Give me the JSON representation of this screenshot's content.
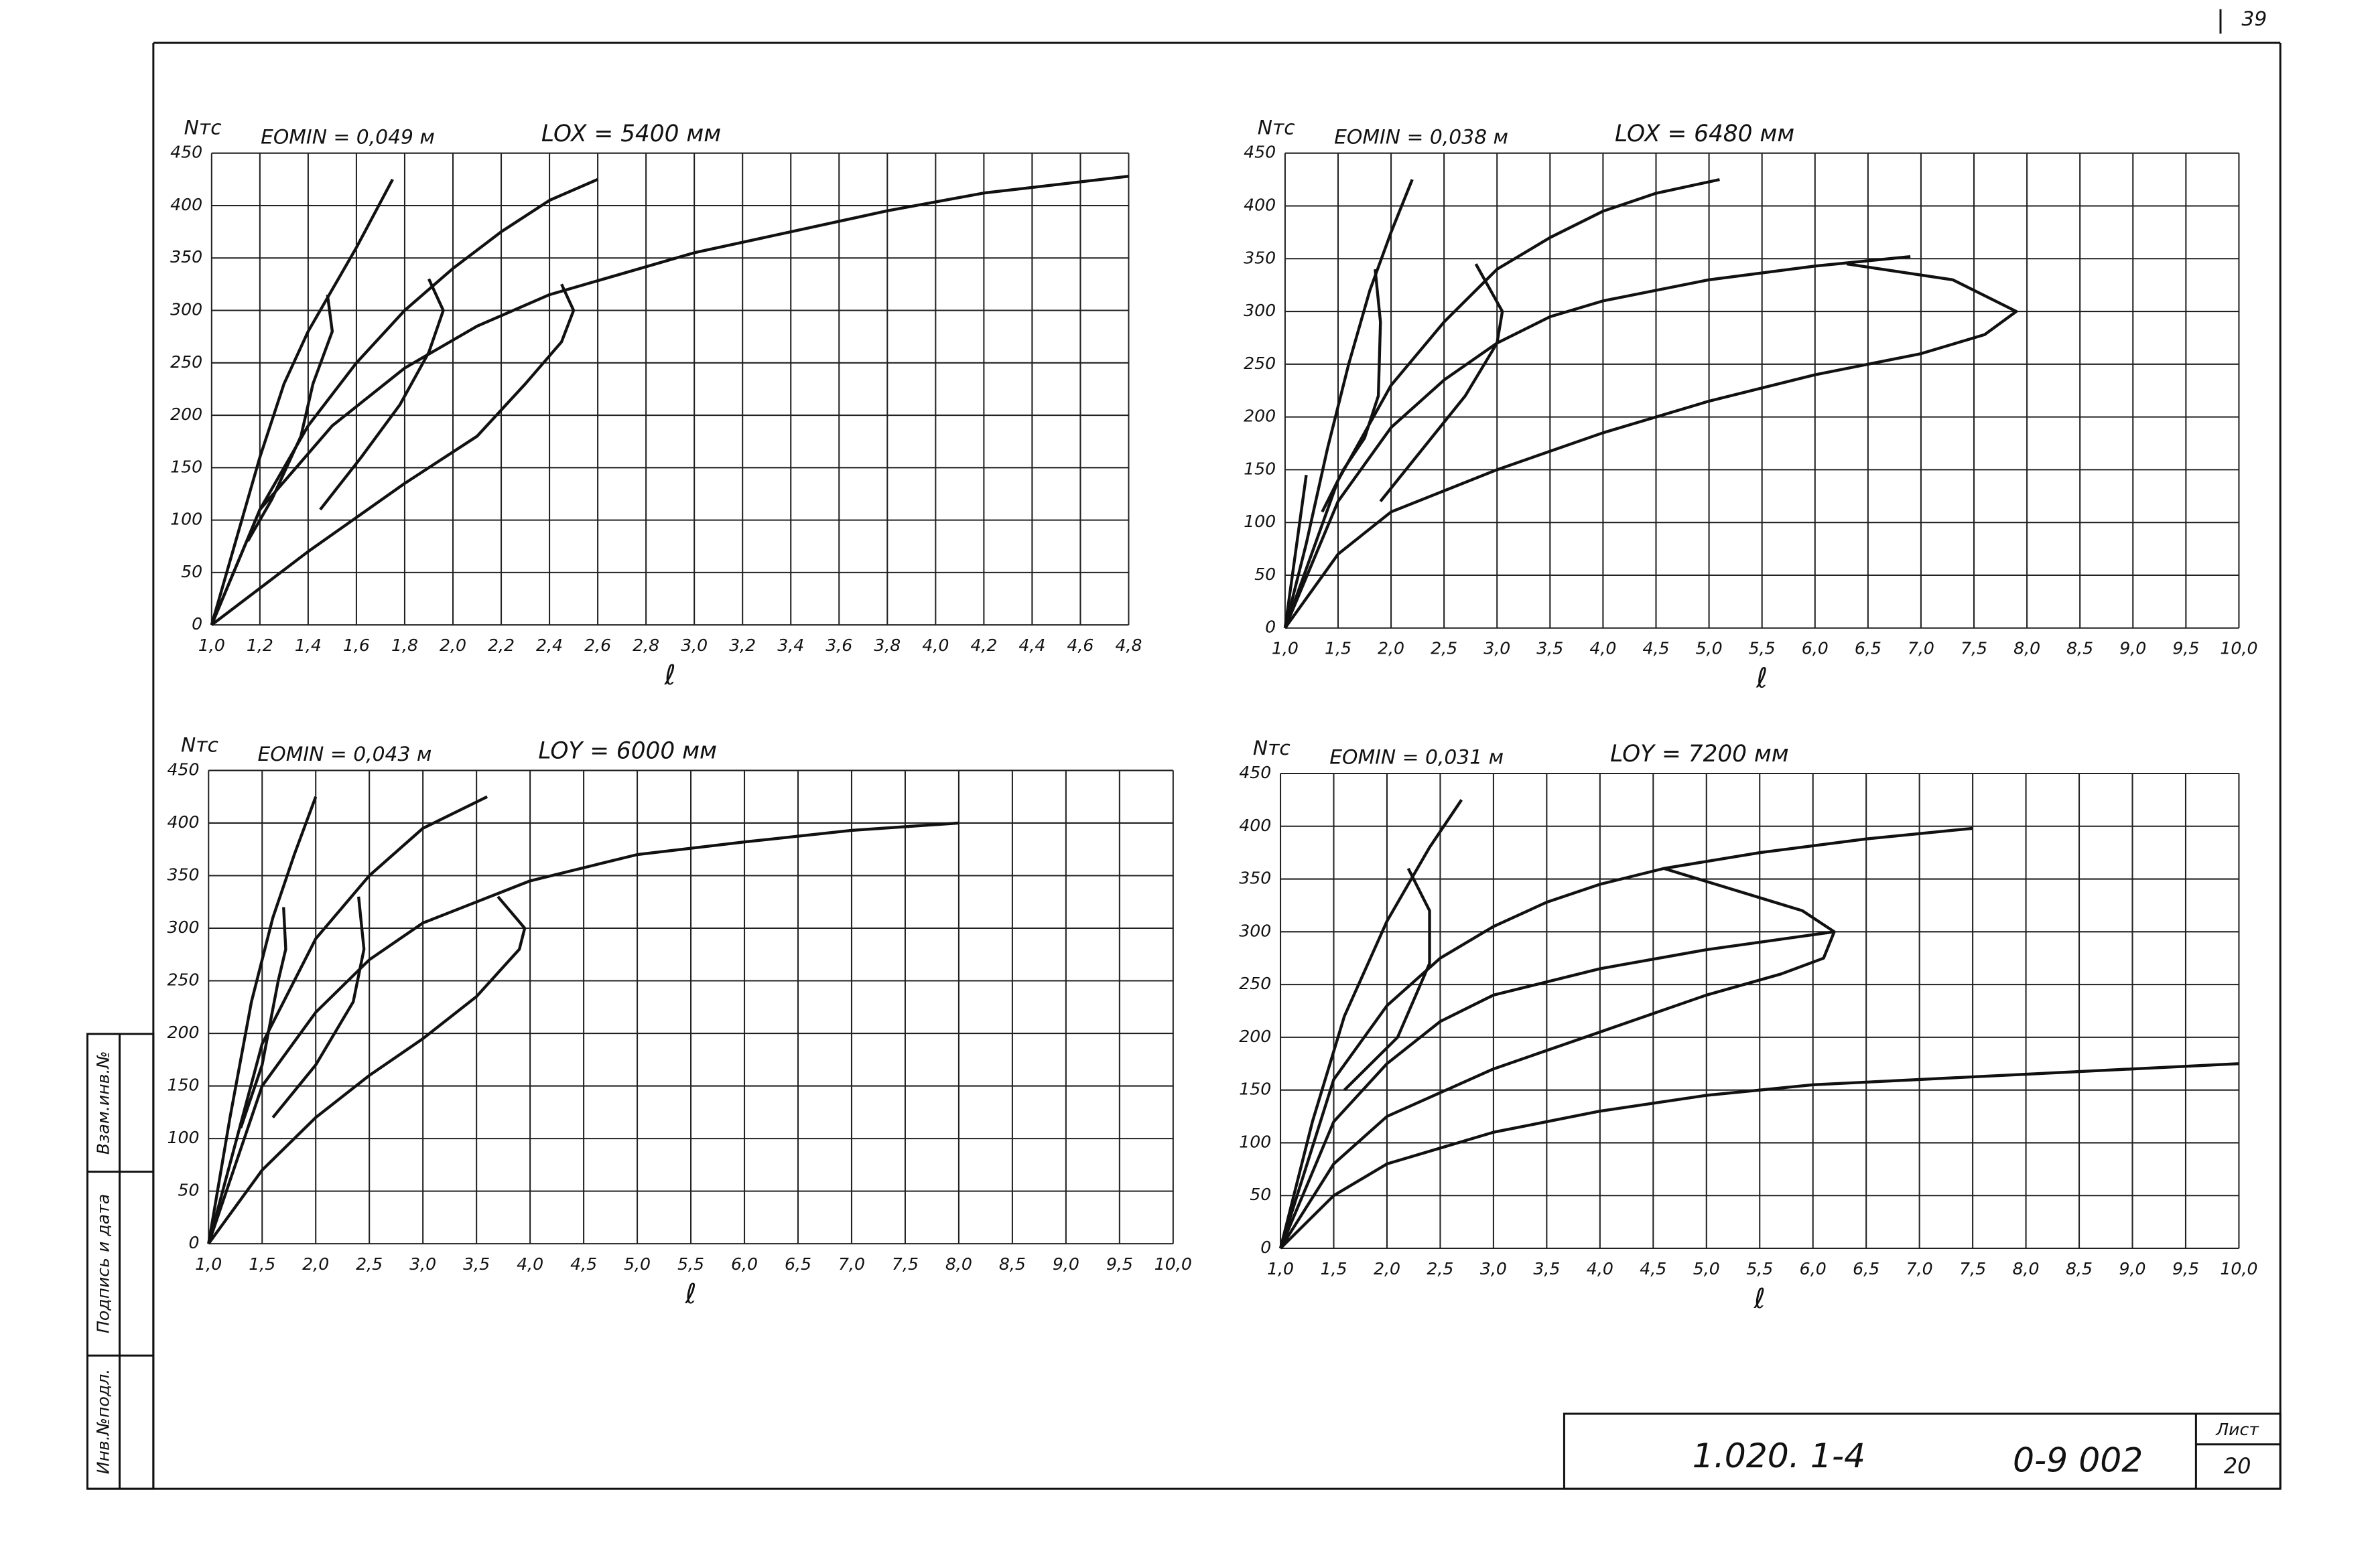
{
  "stamp": {
    "sheet_number": "39",
    "code": "1.020. 1-4",
    "drawing": "0-9 002",
    "sheet_label": "Лист",
    "sheet": "20",
    "replaced": "Взам.инв.№",
    "signature": "Подпись и дата",
    "original": "Инв.№подл."
  },
  "chart_data": [
    {
      "type": "line",
      "annotation": "EOMIN = 0,049 м",
      "title": "LOX = 5400 мм",
      "y_label": "Nтс",
      "x_label": "ℓ",
      "grid": true,
      "xlim": [
        1.0,
        4.8
      ],
      "ylim": [
        0,
        450
      ],
      "xticks": [
        {
          "value": 1.0,
          "label": "1,0"
        },
        {
          "value": 1.2,
          "label": "1,2"
        },
        {
          "value": 1.4,
          "label": "1,4"
        },
        {
          "value": 1.6,
          "label": "1,6"
        },
        {
          "value": 1.8,
          "label": "1,8"
        },
        {
          "value": 2.0,
          "label": "2,0"
        },
        {
          "value": 2.2,
          "label": "2,2"
        },
        {
          "value": 2.4,
          "label": "2,4"
        },
        {
          "value": 2.6,
          "label": "2,6"
        },
        {
          "value": 2.8,
          "label": "2,8"
        },
        {
          "value": 3.0,
          "label": "3,0"
        },
        {
          "value": 3.2,
          "label": "3,2"
        },
        {
          "value": 3.4,
          "label": "3,4"
        },
        {
          "value": 3.6,
          "label": "3,6"
        },
        {
          "value": 3.8,
          "label": "3,8"
        },
        {
          "value": 4.0,
          "label": "4,0"
        },
        {
          "value": 4.2,
          "label": "4,2"
        },
        {
          "value": 4.4,
          "label": "4,4"
        },
        {
          "value": 4.6,
          "label": "4,6"
        },
        {
          "value": 4.8,
          "label": "4,8"
        }
      ],
      "yticks": [
        0,
        50,
        100,
        150,
        200,
        250,
        300,
        350,
        400,
        450
      ],
      "series": [
        {
          "color": "#111",
          "x": [
            1.0,
            1.1,
            1.2,
            1.3,
            1.4,
            1.5,
            1.6,
            1.75
          ],
          "values": [
            0,
            80,
            160,
            230,
            280,
            320,
            360,
            425
          ]
        },
        {
          "color": "#111",
          "x": [
            1.0,
            1.2,
            1.4,
            1.6,
            1.8,
            2.0,
            2.2,
            2.4,
            2.6
          ],
          "values": [
            0,
            110,
            190,
            250,
            300,
            340,
            375,
            405,
            425
          ]
        },
        {
          "color": "#111",
          "x": [
            1.0,
            1.2,
            1.5,
            1.8,
            2.1,
            2.4,
            2.7,
            3.0,
            3.4,
            3.8,
            4.2,
            4.8
          ],
          "values": [
            0,
            110,
            190,
            245,
            285,
            315,
            335,
            355,
            375,
            395,
            412,
            428
          ]
        },
        {
          "color": "#111",
          "x": [
            1.0,
            1.4,
            1.8,
            2.1,
            2.3,
            2.45,
            2.5,
            2.45
          ],
          "values": [
            0,
            70,
            135,
            180,
            230,
            270,
            300,
            325
          ]
        },
        {
          "color": "#111",
          "x": [
            1.48,
            1.5,
            1.42,
            1.37,
            1.25,
            1.15
          ],
          "values": [
            315,
            280,
            230,
            180,
            120,
            80
          ]
        },
        {
          "color": "#111",
          "x": [
            1.9,
            1.96,
            1.9,
            1.78,
            1.62,
            1.45
          ],
          "values": [
            330,
            300,
            260,
            210,
            160,
            110
          ]
        }
      ]
    },
    {
      "type": "line",
      "annotation": "EOMIN = 0,038 м",
      "title": "LOX = 6480 мм",
      "y_label": "Nтс",
      "x_label": "ℓ",
      "grid": true,
      "xlim": [
        1.0,
        10.0
      ],
      "ylim": [
        0,
        450
      ],
      "xticks": [
        {
          "value": 1.0,
          "label": "1,0"
        },
        {
          "value": 1.5,
          "label": "1,5"
        },
        {
          "value": 2.0,
          "label": "2,0"
        },
        {
          "value": 2.5,
          "label": "2,5"
        },
        {
          "value": 3.0,
          "label": "3,0"
        },
        {
          "value": 3.5,
          "label": "3,5"
        },
        {
          "value": 4.0,
          "label": "4,0"
        },
        {
          "value": 4.5,
          "label": "4,5"
        },
        {
          "value": 5.0,
          "label": "5,0"
        },
        {
          "value": 5.5,
          "label": "5,5"
        },
        {
          "value": 6.0,
          "label": "6,0"
        },
        {
          "value": 6.5,
          "label": "6,5"
        },
        {
          "value": 7.0,
          "label": "7,0"
        },
        {
          "value": 7.5,
          "label": "7,5"
        },
        {
          "value": 8.0,
          "label": "8,0"
        },
        {
          "value": 8.5,
          "label": "8,5"
        },
        {
          "value": 9.0,
          "label": "9,0"
        },
        {
          "value": 9.5,
          "label": "9,5"
        },
        {
          "value": 10.0,
          "label": "10,0"
        }
      ],
      "yticks": [
        0,
        50,
        100,
        150,
        200,
        250,
        300,
        350,
        400,
        450
      ],
      "series": [
        {
          "color": "#111",
          "x": [
            1.0,
            1.2,
            1.4,
            1.6,
            1.8,
            2.0,
            2.2
          ],
          "values": [
            0,
            80,
            170,
            250,
            320,
            375,
            425
          ]
        },
        {
          "color": "#111",
          "x": [
            1.0,
            1.2
          ],
          "values": [
            0,
            145
          ]
        },
        {
          "color": "#111",
          "x": [
            1.0,
            1.5,
            2.0,
            2.5,
            3.0,
            3.5,
            4.0,
            4.5,
            5.1
          ],
          "values": [
            0,
            140,
            230,
            290,
            340,
            370,
            395,
            412,
            425
          ]
        },
        {
          "color": "#111",
          "x": [
            1.0,
            1.5,
            2.0,
            2.5,
            3.0,
            3.5,
            4.0,
            5.0,
            6.0,
            6.9
          ],
          "values": [
            0,
            120,
            190,
            235,
            270,
            295,
            310,
            330,
            343,
            352
          ]
        },
        {
          "color": "#111",
          "x": [
            1.0,
            1.5,
            2.0,
            3.0,
            4.0,
            5.0,
            6.0,
            7.0,
            7.6,
            7.9,
            7.3,
            6.3
          ],
          "values": [
            0,
            70,
            110,
            150,
            185,
            215,
            240,
            260,
            278,
            300,
            330,
            345
          ]
        },
        {
          "color": "#111",
          "x": [
            1.85,
            1.9,
            1.88,
            1.75,
            1.55,
            1.35
          ],
          "values": [
            340,
            290,
            220,
            180,
            150,
            110
          ]
        },
        {
          "color": "#111",
          "x": [
            2.8,
            3.05,
            3.0,
            2.7,
            2.3,
            1.9
          ],
          "values": [
            345,
            300,
            270,
            220,
            170,
            120
          ]
        }
      ]
    },
    {
      "type": "line",
      "annotation": "EOMIN = 0,043 м",
      "title": "LOY = 6000 мм",
      "y_label": "Nтс",
      "x_label": "ℓ",
      "grid": true,
      "xlim": [
        1.0,
        10.0
      ],
      "ylim": [
        0,
        450
      ],
      "xticks": [
        {
          "value": 1.0,
          "label": "1,0"
        },
        {
          "value": 1.5,
          "label": "1,5"
        },
        {
          "value": 2.0,
          "label": "2,0"
        },
        {
          "value": 2.5,
          "label": "2,5"
        },
        {
          "value": 3.0,
          "label": "3,0"
        },
        {
          "value": 3.5,
          "label": "3,5"
        },
        {
          "value": 4.0,
          "label": "4,0"
        },
        {
          "value": 4.5,
          "label": "4,5"
        },
        {
          "value": 5.0,
          "label": "5,0"
        },
        {
          "value": 5.5,
          "label": "5,5"
        },
        {
          "value": 6.0,
          "label": "6,0"
        },
        {
          "value": 6.5,
          "label": "6,5"
        },
        {
          "value": 7.0,
          "label": "7,0"
        },
        {
          "value": 7.5,
          "label": "7,5"
        },
        {
          "value": 8.0,
          "label": "8,0"
        },
        {
          "value": 8.5,
          "label": "8,5"
        },
        {
          "value": 9.0,
          "label": "9,0"
        },
        {
          "value": 9.5,
          "label": "9,5"
        },
        {
          "value": 10.0,
          "label": "10,0"
        }
      ],
      "yticks": [
        0,
        50,
        100,
        150,
        200,
        250,
        300,
        350,
        400,
        450
      ],
      "series": [
        {
          "color": "#111",
          "x": [
            1.0,
            1.2,
            1.4,
            1.6,
            1.8,
            2.0
          ],
          "values": [
            0,
            120,
            230,
            310,
            370,
            425
          ]
        },
        {
          "color": "#111",
          "x": [
            1.0,
            1.5,
            2.0,
            2.5,
            3.0,
            3.6
          ],
          "values": [
            0,
            190,
            290,
            350,
            395,
            425
          ]
        },
        {
          "color": "#111",
          "x": [
            1.0,
            1.5,
            2.0,
            2.5,
            3.0,
            3.5,
            4.0,
            5.0,
            6.0,
            7.0,
            8.0
          ],
          "values": [
            0,
            150,
            220,
            270,
            305,
            325,
            345,
            370,
            382,
            393,
            400
          ]
        },
        {
          "color": "#111",
          "x": [
            1.0,
            1.5,
            2.0,
            2.5,
            3.0,
            3.5,
            3.9,
            3.95,
            3.7
          ],
          "values": [
            0,
            70,
            120,
            160,
            195,
            235,
            280,
            300,
            330
          ]
        },
        {
          "color": "#111",
          "x": [
            1.7,
            1.72,
            1.65,
            1.5,
            1.3
          ],
          "values": [
            320,
            280,
            250,
            170,
            110
          ]
        },
        {
          "color": "#111",
          "x": [
            2.4,
            2.45,
            2.35,
            2.0,
            1.6
          ],
          "values": [
            330,
            280,
            230,
            170,
            120
          ]
        }
      ]
    },
    {
      "type": "line",
      "annotation": "EOMIN = 0,031 м",
      "title": "LOY = 7200 мм",
      "y_label": "Nтс",
      "x_label": "ℓ",
      "grid": true,
      "xlim": [
        1.0,
        10.0
      ],
      "ylim": [
        0,
        450
      ],
      "xticks": [
        {
          "value": 1.0,
          "label": "1,0"
        },
        {
          "value": 1.5,
          "label": "1,5"
        },
        {
          "value": 2.0,
          "label": "2,0"
        },
        {
          "value": 2.5,
          "label": "2,5"
        },
        {
          "value": 3.0,
          "label": "3,0"
        },
        {
          "value": 3.5,
          "label": "3,5"
        },
        {
          "value": 4.0,
          "label": "4,0"
        },
        {
          "value": 4.5,
          "label": "4,5"
        },
        {
          "value": 5.0,
          "label": "5,0"
        },
        {
          "value": 5.5,
          "label": "5,5"
        },
        {
          "value": 6.0,
          "label": "6,0"
        },
        {
          "value": 6.5,
          "label": "6,5"
        },
        {
          "value": 7.0,
          "label": "7,0"
        },
        {
          "value": 7.5,
          "label": "7,5"
        },
        {
          "value": 8.0,
          "label": "8,0"
        },
        {
          "value": 8.5,
          "label": "8,5"
        },
        {
          "value": 9.0,
          "label": "9,0"
        },
        {
          "value": 9.5,
          "label": "9,5"
        },
        {
          "value": 10.0,
          "label": "10,0"
        }
      ],
      "yticks": [
        0,
        50,
        100,
        150,
        200,
        250,
        300,
        350,
        400,
        450
      ],
      "series": [
        {
          "color": "#111",
          "x": [
            1.0,
            1.3,
            1.6,
            2.0,
            2.4,
            2.7
          ],
          "values": [
            0,
            120,
            220,
            310,
            380,
            425
          ]
        },
        {
          "color": "#111",
          "x": [
            1.0,
            1.5,
            2.0,
            2.5,
            3.0,
            3.5,
            4.0,
            4.6,
            5.5,
            6.5,
            7.5
          ],
          "values": [
            0,
            160,
            230,
            275,
            305,
            328,
            345,
            360,
            375,
            388,
            398
          ]
        },
        {
          "color": "#111",
          "x": [
            1.0,
            1.5,
            2.0,
            2.5,
            3.0,
            4.0,
            5.0,
            6.2
          ],
          "values": [
            0,
            120,
            175,
            215,
            240,
            265,
            283,
            300
          ]
        },
        {
          "color": "#111",
          "x": [
            1.0,
            1.5,
            2.0,
            3.0,
            4.0,
            5.0,
            5.7,
            6.1,
            6.2,
            5.9,
            4.6
          ],
          "values": [
            0,
            80,
            125,
            170,
            205,
            240,
            260,
            275,
            300,
            320,
            360
          ]
        },
        {
          "color": "#111",
          "x": [
            1.0,
            1.5,
            2.0,
            3.0,
            4.0,
            5.0,
            6.0,
            7.0,
            8.0,
            9.0,
            10.0
          ],
          "values": [
            0,
            50,
            80,
            110,
            130,
            145,
            155,
            160,
            165,
            170,
            175
          ]
        },
        {
          "color": "#111",
          "x": [
            2.2,
            2.4,
            2.4,
            2.1,
            1.6
          ],
          "values": [
            360,
            320,
            270,
            200,
            150
          ]
        }
      ]
    }
  ]
}
